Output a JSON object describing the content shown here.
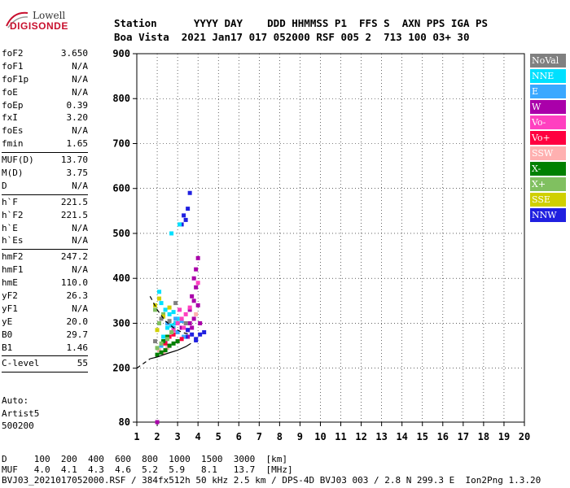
{
  "logo": {
    "brand_line1": "Lowell",
    "brand_line2": "DIGISONDE"
  },
  "header": {
    "labels": "Station      YYYY DAY    DDD HHMMSS P1  FFS S  AXN PPS IGA PS",
    "values": "Boa Vista  2021 Jan17 017 052000 RSF 005 2  713 100 03+ 30"
  },
  "params": {
    "group1": [
      {
        "k": "foF2",
        "v": "3.650"
      },
      {
        "k": "foF1",
        "v": "N/A"
      },
      {
        "k": "foF1p",
        "v": "N/A"
      },
      {
        "k": "foE",
        "v": "N/A"
      },
      {
        "k": "foEp",
        "v": "0.39"
      },
      {
        "k": "fxI",
        "v": "3.20"
      },
      {
        "k": "foEs",
        "v": "N/A"
      },
      {
        "k": "fmin",
        "v": "1.65"
      }
    ],
    "group2": [
      {
        "k": "MUF(D)",
        "v": "13.70"
      },
      {
        "k": "M(D)",
        "v": "3.75"
      },
      {
        "k": "D",
        "v": "N/A"
      }
    ],
    "group3": [
      {
        "k": "h`F",
        "v": "221.5"
      },
      {
        "k": "h`F2",
        "v": "221.5"
      },
      {
        "k": "h`E",
        "v": "N/A"
      },
      {
        "k": "h`Es",
        "v": "N/A"
      }
    ],
    "group4": [
      {
        "k": "hmF2",
        "v": "247.2"
      },
      {
        "k": "hmF1",
        "v": "N/A"
      },
      {
        "k": "hmE",
        "v": "110.0"
      },
      {
        "k": "yF2",
        "v": "26.3"
      },
      {
        "k": "yF1",
        "v": "N/A"
      },
      {
        "k": "yE",
        "v": "20.0"
      },
      {
        "k": "B0",
        "v": "29.7"
      },
      {
        "k": "B1",
        "v": "1.46"
      }
    ],
    "group5": [
      {
        "k": "C-level",
        "v": "55"
      }
    ]
  },
  "auto": {
    "line1": "Auto:",
    "line2": "Artist5",
    "line3": "500200"
  },
  "bottom": {
    "d_row": "D     100  200  400  600  800  1000  1500  3000  [km]",
    "muf_row": "MUF   4.0  4.1  4.3  4.6  5.2  5.9   8.1   13.7  [MHz]",
    "footer": "BVJ03_2021017052000.RSF / 384fx512h 50 kHz 2.5 km / DPS-4D BVJ03 003 / 2.8 N 299.3 E  Ion2Png 1.3.20"
  },
  "legend": [
    {
      "label": "NoVal",
      "color": "#808080"
    },
    {
      "label": "NNE",
      "color": "#00e0ff"
    },
    {
      "label": "E",
      "color": "#3aa8ff"
    },
    {
      "label": "W",
      "color": "#aa00aa"
    },
    {
      "label": "Vo-",
      "color": "#ff40c0"
    },
    {
      "label": "Vo+",
      "color": "#ff0040"
    },
    {
      "label": "SSW",
      "color": "#ffb0b0"
    },
    {
      "label": "X-",
      "color": "#008000"
    },
    {
      "label": "X+",
      "color": "#80c060"
    },
    {
      "label": "SSE",
      "color": "#d0d000"
    },
    {
      "label": "NNW",
      "color": "#2020e0"
    }
  ],
  "chart_data": {
    "type": "scatter",
    "xlabel": "",
    "ylabel": "",
    "xlim": [
      1,
      20
    ],
    "ylim": [
      80,
      900
    ],
    "x_ticks": [
      1,
      2,
      3,
      4,
      5,
      6,
      7,
      8,
      9,
      10,
      11,
      12,
      13,
      14,
      15,
      16,
      17,
      18,
      19,
      20
    ],
    "y_ticks": [
      80,
      200,
      300,
      400,
      500,
      600,
      700,
      800,
      900
    ],
    "grid": true,
    "legend_position": "right",
    "series": [
      {
        "name": "W",
        "color": "#aa00aa",
        "points": [
          [
            3.6,
            330
          ],
          [
            3.7,
            360
          ],
          [
            3.8,
            400
          ],
          [
            3.9,
            420
          ],
          [
            3.8,
            310
          ],
          [
            4.0,
            340
          ],
          [
            3.7,
            290
          ],
          [
            3.9,
            380
          ],
          [
            4.0,
            445
          ],
          [
            3.6,
            300
          ],
          [
            3.5,
            285
          ],
          [
            4.1,
            300
          ],
          [
            3.8,
            350
          ],
          [
            3.5,
            270
          ],
          [
            2.6,
            250
          ],
          [
            2.4,
            260
          ],
          [
            3.2,
            290
          ],
          [
            2.0,
            80
          ]
        ]
      },
      {
        "name": "NNW",
        "color": "#2020e0",
        "points": [
          [
            3.5,
            285
          ],
          [
            3.7,
            275
          ],
          [
            3.9,
            265
          ],
          [
            4.1,
            275
          ],
          [
            4.3,
            280
          ],
          [
            3.3,
            540
          ],
          [
            3.5,
            555
          ],
          [
            3.2,
            520
          ],
          [
            3.4,
            530
          ],
          [
            3.6,
            590
          ],
          [
            3.9,
            262
          ],
          [
            3.4,
            270
          ]
        ]
      },
      {
        "name": "NNE",
        "color": "#00e0ff",
        "points": [
          [
            2.2,
            345
          ],
          [
            2.4,
            330
          ],
          [
            2.6,
            320
          ],
          [
            2.8,
            325
          ],
          [
            3.0,
            310
          ],
          [
            2.9,
            300
          ],
          [
            2.7,
            295
          ],
          [
            2.5,
            290
          ],
          [
            2.3,
            270
          ],
          [
            3.1,
            520
          ],
          [
            2.7,
            500
          ],
          [
            2.1,
            370
          ]
        ]
      },
      {
        "name": "E",
        "color": "#3aa8ff",
        "points": [
          [
            2.5,
            300
          ],
          [
            2.8,
            290
          ],
          [
            3.0,
            280
          ],
          [
            3.3,
            270
          ],
          [
            2.2,
            250
          ],
          [
            2.9,
            310
          ],
          [
            3.2,
            305
          ]
        ]
      },
      {
        "name": "Vo-",
        "color": "#ff40c0",
        "points": [
          [
            3.0,
            300
          ],
          [
            3.2,
            310
          ],
          [
            3.4,
            320
          ],
          [
            3.6,
            335
          ],
          [
            3.1,
            330
          ],
          [
            2.8,
            285
          ],
          [
            3.3,
            290
          ],
          [
            4.0,
            390
          ]
        ]
      },
      {
        "name": "Vo+",
        "color": "#ff0040",
        "points": [
          [
            2.6,
            270
          ],
          [
            2.8,
            275
          ],
          [
            3.0,
            260
          ],
          [
            3.2,
            265
          ],
          [
            2.4,
            255
          ]
        ]
      },
      {
        "name": "SSW",
        "color": "#ffb0b0",
        "points": [
          [
            2.1,
            240
          ],
          [
            2.3,
            235
          ],
          [
            2.5,
            245
          ],
          [
            3.9,
            320
          ]
        ]
      },
      {
        "name": "X-",
        "color": "#008000",
        "points": [
          [
            2.0,
            230
          ],
          [
            2.2,
            235
          ],
          [
            2.4,
            240
          ],
          [
            2.6,
            250
          ],
          [
            2.8,
            255
          ],
          [
            3.0,
            260
          ],
          [
            2.3,
            260
          ],
          [
            2.5,
            270
          ]
        ]
      },
      {
        "name": "X+",
        "color": "#80c060",
        "points": [
          [
            2.0,
            245
          ],
          [
            2.2,
            255
          ],
          [
            2.5,
            265
          ],
          [
            2.7,
            280
          ],
          [
            2.1,
            300
          ],
          [
            1.9,
            330
          ],
          [
            2.3,
            320
          ]
        ]
      },
      {
        "name": "SSE",
        "color": "#d0d000",
        "points": [
          [
            1.9,
            340
          ],
          [
            2.1,
            355
          ],
          [
            2.3,
            315
          ],
          [
            2.6,
            335
          ],
          [
            2.0,
            285
          ]
        ]
      },
      {
        "name": "NoVal",
        "color": "#808080",
        "points": [
          [
            2.2,
            310
          ],
          [
            2.6,
            305
          ],
          [
            2.9,
            345
          ],
          [
            3.4,
            300
          ],
          [
            1.9,
            260
          ]
        ]
      }
    ],
    "trace_lines": [
      {
        "style": "solid",
        "points": [
          [
            1.65,
            221
          ],
          [
            2.0,
            225
          ],
          [
            2.5,
            233
          ],
          [
            3.0,
            240
          ],
          [
            3.4,
            248
          ],
          [
            3.65,
            255
          ]
        ]
      },
      {
        "style": "dashed",
        "points": [
          [
            1.65,
            360
          ],
          [
            2.0,
            330
          ],
          [
            2.4,
            305
          ],
          [
            2.8,
            290
          ],
          [
            3.2,
            280
          ],
          [
            3.6,
            275
          ]
        ]
      },
      {
        "style": "dashed",
        "points": [
          [
            1.0,
            200
          ],
          [
            1.65,
            221
          ]
        ]
      }
    ]
  }
}
